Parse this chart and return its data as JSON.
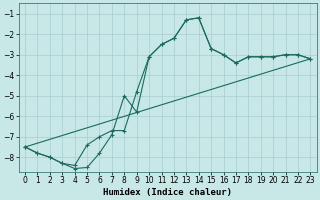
{
  "xlabel": "Humidex (Indice chaleur)",
  "bg_color": "#c8e8e8",
  "grid_color": "#a8cece",
  "line_color": "#1a6b5a",
  "xlim": [
    -0.5,
    23.5
  ],
  "ylim": [
    -8.7,
    -0.5
  ],
  "yticks": [
    -1,
    -2,
    -3,
    -4,
    -5,
    -6,
    -7,
    -8
  ],
  "xticks": [
    0,
    1,
    2,
    3,
    4,
    5,
    6,
    7,
    8,
    9,
    10,
    11,
    12,
    13,
    14,
    15,
    16,
    17,
    18,
    19,
    20,
    21,
    22,
    23
  ],
  "line1": {
    "x": [
      0,
      1,
      2,
      3,
      4,
      5,
      6,
      7,
      8,
      9,
      10,
      11,
      12,
      13,
      14,
      15,
      16,
      17,
      18,
      19,
      20,
      21,
      22,
      23
    ],
    "y": [
      -7.5,
      -7.8,
      -8.0,
      -8.3,
      -8.4,
      -7.4,
      -7.0,
      -6.7,
      -6.7,
      -4.8,
      -3.1,
      -2.5,
      -2.2,
      -1.3,
      -1.2,
      -2.7,
      -3.0,
      -3.4,
      -3.1,
      -3.1,
      -3.1,
      -3.0,
      -3.0,
      -3.2
    ]
  },
  "line2": {
    "x": [
      0,
      1,
      2,
      3,
      4,
      5,
      6,
      7,
      8,
      9,
      10,
      11,
      12,
      13,
      14,
      15,
      16,
      17,
      18,
      19,
      20,
      21,
      22,
      23
    ],
    "y": [
      -7.5,
      -7.8,
      -8.0,
      -8.3,
      -8.55,
      -8.5,
      -7.8,
      -6.9,
      -5.0,
      -5.8,
      -3.1,
      -2.5,
      -2.2,
      -1.3,
      -1.2,
      -2.7,
      -3.0,
      -3.4,
      -3.1,
      -3.1,
      -3.1,
      -3.0,
      -3.0,
      -3.2
    ]
  },
  "line3": {
    "x": [
      0,
      23
    ],
    "y": [
      -7.5,
      -3.2
    ]
  }
}
